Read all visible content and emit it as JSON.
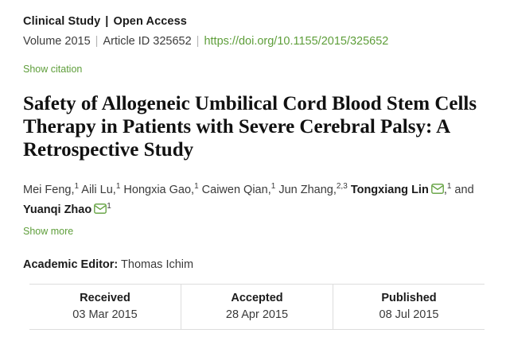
{
  "colors": {
    "accent_green": "#5e9e3a",
    "heading_dark": "#1b1b1b",
    "body_text": "#3a3a3a",
    "divider_gray": "#dddddd"
  },
  "header": {
    "category": "Clinical Study",
    "separator": "|",
    "access": "Open Access",
    "volume": "Volume 2015",
    "article_id": "Article ID 325652",
    "doi_link": "https://doi.org/10.1155/2015/325652",
    "show_citation": "Show citation"
  },
  "article": {
    "title": "Safety of Allogeneic Umbilical Cord Blood Stem Cells Therapy in Patients with Severe Cerebral Palsy: A Retrospective Study"
  },
  "authors": {
    "list": [
      {
        "name": "Mei Feng",
        "bold": false,
        "email": false,
        "sep": ",",
        "sup": "1",
        "after": " "
      },
      {
        "name": "Aili Lu",
        "bold": false,
        "email": false,
        "sep": ",",
        "sup": "1",
        "after": " "
      },
      {
        "name": "Hongxia Gao",
        "bold": false,
        "email": false,
        "sep": ",",
        "sup": "1",
        "after": " "
      },
      {
        "name": "Caiwen Qian",
        "bold": false,
        "email": false,
        "sep": ",",
        "sup": "1",
        "after": " "
      },
      {
        "name": "Jun Zhang",
        "bold": false,
        "email": false,
        "sep": ",",
        "sup": "2,3",
        "after": " "
      },
      {
        "name": "Tongxiang Lin",
        "bold": true,
        "email": true,
        "sep": ",",
        "sup": "1",
        "after": " and "
      },
      {
        "name": "Yuanqi Zhao",
        "bold": true,
        "email": true,
        "sep": "",
        "sup": "1",
        "after": ""
      }
    ],
    "show_more": "Show more"
  },
  "editor": {
    "label": "Academic Editor:",
    "name": "Thomas Ichim"
  },
  "dates": {
    "columns": [
      {
        "label": "Received",
        "value": "03 Mar 2015"
      },
      {
        "label": "Accepted",
        "value": "28 Apr 2015"
      },
      {
        "label": "Published",
        "value": "08 Jul 2015"
      }
    ]
  }
}
